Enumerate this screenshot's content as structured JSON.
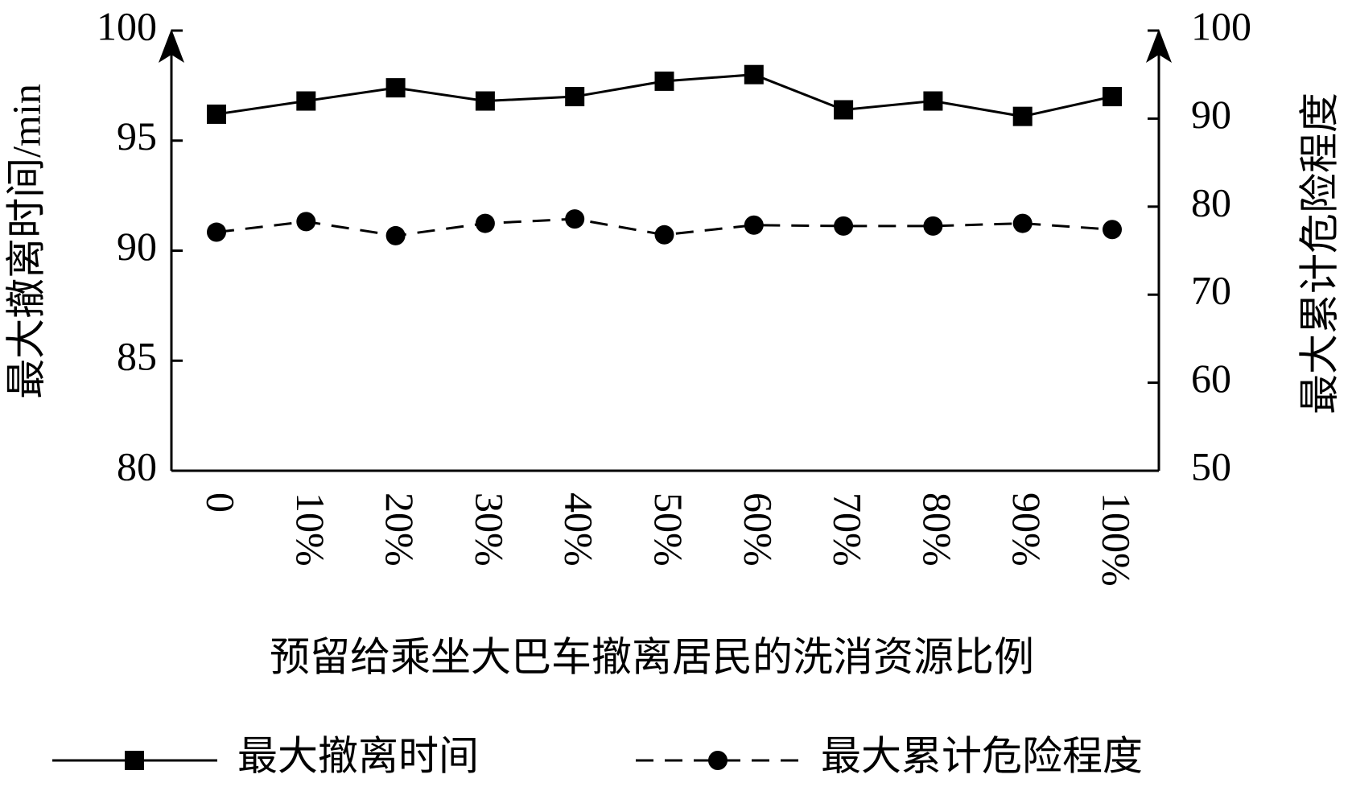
{
  "chart_data": {
    "type": "line",
    "x_label": "预留给乘坐大巴车撤离居民的洗消资源比例",
    "y_label": "最大撤离时间/min",
    "y2_label": "最大累计危险程度",
    "categories": [
      "0",
      "10%",
      "20%",
      "30%",
      "40%",
      "50%",
      "60%",
      "70%",
      "80%",
      "90%",
      "100%"
    ],
    "series": [
      {
        "name": "最大撤离时间",
        "color": "#000000",
        "marker": "square",
        "dash": "solid",
        "values": [
          96.2,
          96.8,
          97.4,
          96.8,
          97.0,
          97.7,
          98.0,
          96.4,
          96.8,
          96.1,
          97.0
        ]
      },
      {
        "name": "最大累计危险程度",
        "color": "#000000",
        "marker": "circle",
        "dash": "dashed",
        "axis": "y2",
        "values": [
          77.1,
          78.3,
          76.7,
          78.1,
          78.6,
          76.8,
          77.9,
          77.8,
          77.8,
          78.1,
          77.4
        ]
      }
    ],
    "ylim": [
      80,
      100
    ],
    "yticks": [
      80,
      85,
      90,
      95,
      100
    ],
    "y2lim": [
      50,
      100
    ],
    "y2ticks": [
      50,
      60,
      70,
      80,
      90,
      100
    ],
    "grid": false,
    "legend": "bottom"
  }
}
